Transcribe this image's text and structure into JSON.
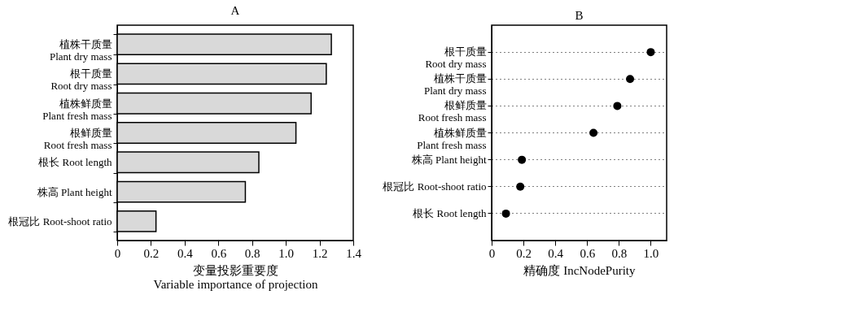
{
  "chart_data": [
    {
      "type": "bar",
      "title": "A",
      "orientation": "horizontal",
      "xlabel": "变量投影重要度\nVariable importance of projection",
      "categories": [
        "植株干质量\nPlant dry mass",
        "根干质量\nRoot dry mass",
        "植株鲜质量\nPlant fresh mass",
        "根鲜质量\nRoot fresh mass",
        "根长  Root length",
        "株高  Plant height",
        "根冠比  Root-shoot ratio"
      ],
      "values": [
        1.27,
        1.24,
        1.15,
        1.06,
        0.84,
        0.76,
        0.23
      ],
      "color": "#d9d9d9",
      "xlim": [
        0,
        1.4
      ],
      "xticks": [
        0,
        0.2,
        0.4,
        0.6,
        0.8,
        {
          "value": 1,
          "label": "1.0"
        },
        1.2,
        1.4
      ],
      "grid": false
    },
    {
      "type": "scatter",
      "title": "B",
      "orientation": "horizontal",
      "xlabel": "精确度  IncNodePurity",
      "categories": [
        "根干质量\nRoot dry mass",
        "植株干质量\nPlant dry mass",
        "根鲜质量\nRoot fresh mass",
        "植株鲜质量\nPlant fresh mass",
        "株高  Plant height",
        "根冠比  Root-shoot ratio",
        "根长  Root length"
      ],
      "values": [
        1.0,
        0.87,
        0.79,
        0.64,
        0.19,
        0.18,
        0.09
      ],
      "color": "#000000",
      "marker": "circle",
      "xlim": [
        0,
        1.1
      ],
      "xticks": [
        0,
        0.2,
        0.4,
        0.6,
        0.8,
        {
          "value": 1,
          "label": "1.0"
        }
      ],
      "grid": "y",
      "line_style": "dotted"
    }
  ]
}
